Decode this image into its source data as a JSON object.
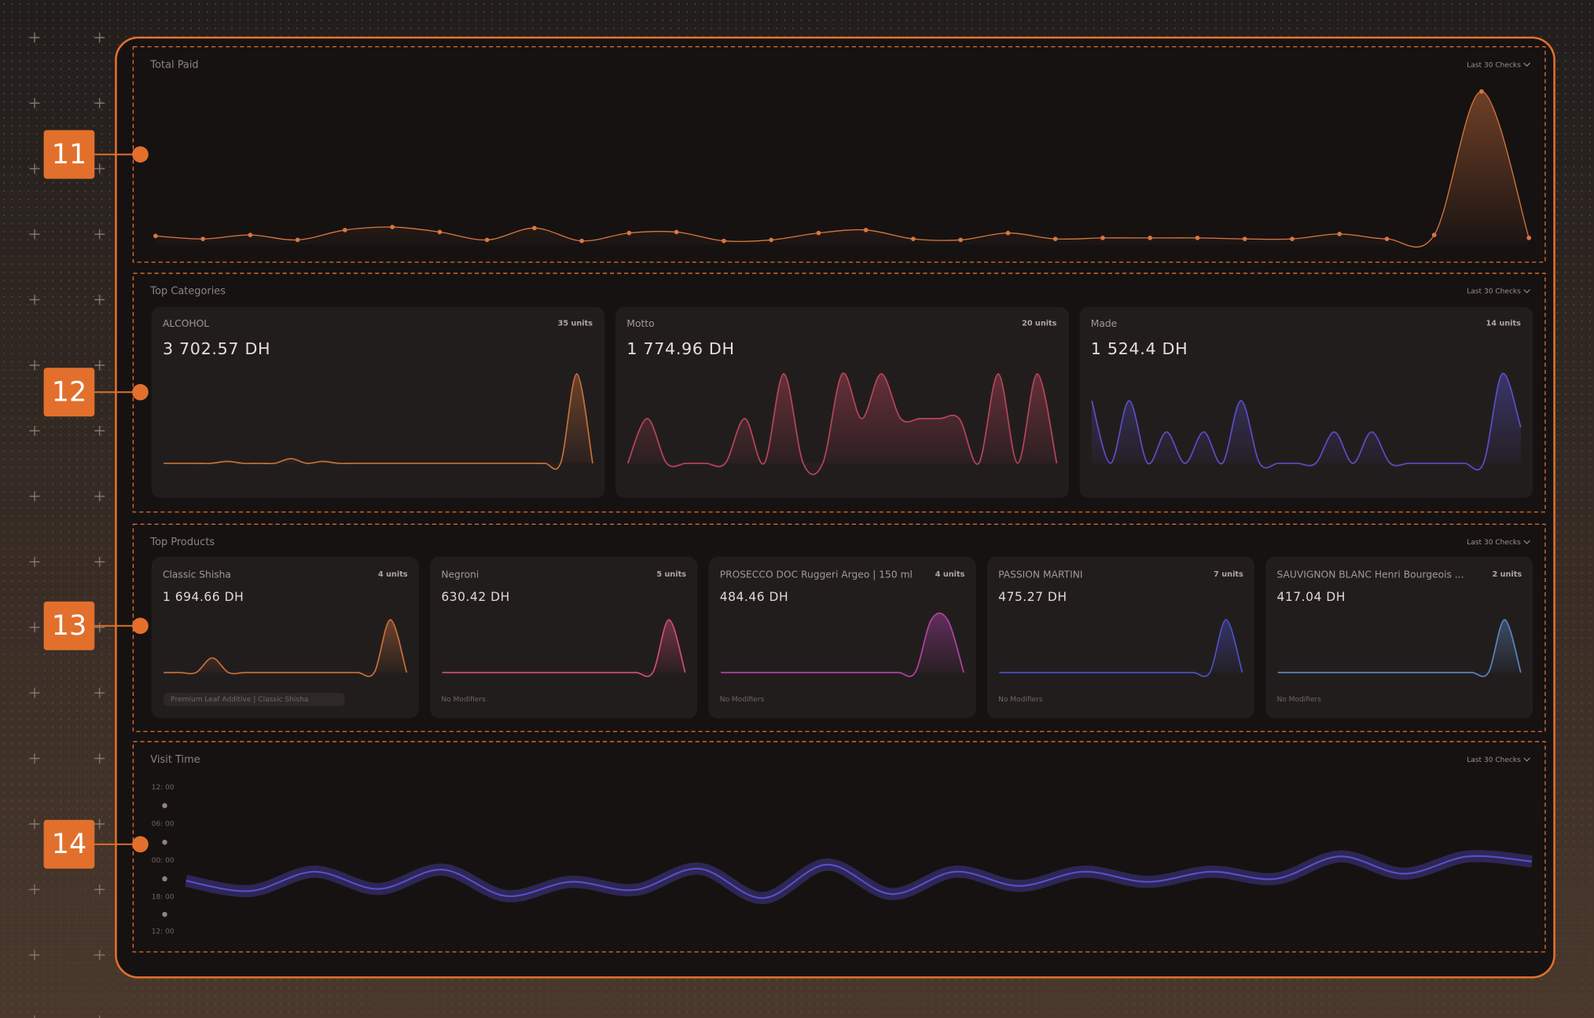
{
  "callouts": [
    "11",
    "12",
    "13",
    "14"
  ],
  "total_paid": {
    "title": "Total Paid",
    "filter": "Last 30 Checks",
    "color": "#d9773f",
    "values": [
      9,
      6,
      10,
      5,
      15,
      18,
      13,
      5,
      17,
      4,
      12,
      13,
      4,
      5,
      12,
      15,
      6,
      5,
      12,
      6,
      7,
      7,
      7,
      6,
      6,
      11,
      6,
      10,
      155,
      7
    ]
  },
  "top_categories": {
    "title": "Top Categories",
    "filter": "Last 30 Checks",
    "cards": [
      {
        "name": "ALCOHOL",
        "units": "35 units",
        "amount": "3 702.57 DH",
        "color": "#c8703a",
        "values": [
          0,
          0,
          0,
          0,
          2,
          0,
          0,
          0,
          5,
          0,
          2,
          0,
          0,
          0,
          0,
          0,
          0,
          0,
          0,
          0,
          0,
          0,
          0,
          0,
          0,
          1,
          95,
          0
        ]
      },
      {
        "name": "Motto",
        "units": "20 units",
        "amount": "1 774.96 DH",
        "color": "#b8465a",
        "values": [
          0,
          50,
          0,
          0,
          0,
          0,
          50,
          0,
          100,
          0,
          0,
          100,
          50,
          100,
          50,
          50,
          50,
          50,
          0,
          100,
          0,
          100,
          0
        ]
      },
      {
        "name": "Made",
        "units": "14 units",
        "amount": "1 524.4 DH",
        "color": "#5a50c8",
        "values": [
          70,
          0,
          70,
          0,
          35,
          0,
          35,
          0,
          70,
          0,
          0,
          0,
          0,
          35,
          0,
          35,
          0,
          0,
          0,
          0,
          0,
          0,
          100,
          40
        ]
      }
    ]
  },
  "top_products": {
    "title": "Top Products",
    "filter": "Last 30 Checks",
    "cards": [
      {
        "name": "Classic Shisha",
        "units": "4 units",
        "amount": "1 694.66 DH",
        "note": "Premium Leaf Additive | Classic Shisha",
        "color": "#c8703a",
        "values": [
          0,
          0,
          0,
          25,
          0,
          0,
          0,
          0,
          0,
          0,
          0,
          0,
          0,
          0,
          90,
          0
        ]
      },
      {
        "name": "Negroni",
        "units": "5 units",
        "amount": "630.42 DH",
        "note": "No Modifiers",
        "color": "#d05070",
        "values": [
          0,
          0,
          0,
          0,
          0,
          0,
          0,
          0,
          0,
          0,
          0,
          0,
          0,
          0,
          70,
          0
        ]
      },
      {
        "name": "PROSECCO DOC Ruggeri Argeo | 150 ml",
        "units": "4 units",
        "amount": "484.46 DH",
        "note": "No Modifiers",
        "color": "#b044a8",
        "values": [
          0,
          0,
          0,
          0,
          0,
          0,
          0,
          0,
          0,
          0,
          0,
          0,
          0,
          100,
          100,
          0
        ]
      },
      {
        "name": "PASSION MARTINI",
        "units": "7 units",
        "amount": "475.27 DH",
        "note": "No Modifiers",
        "color": "#4a52c8",
        "values": [
          0,
          0,
          0,
          0,
          0,
          0,
          0,
          0,
          0,
          0,
          0,
          0,
          0,
          0,
          65,
          0
        ]
      },
      {
        "name": "SAUVIGNON BLANC Henri Bourgeois ...",
        "units": "2 units",
        "amount": "417.04 DH",
        "note": "No Modifiers",
        "color": "#5a86c0",
        "values": [
          0,
          0,
          0,
          0,
          0,
          0,
          0,
          0,
          0,
          0,
          0,
          0,
          0,
          0,
          90,
          0
        ]
      }
    ]
  },
  "visit_time": {
    "title": "Visit Time",
    "filter": "Last 30 Checks",
    "color": "#5a4fd0",
    "axis_labels": [
      "12: 00",
      "06: 00",
      "00: 00",
      "18: 00",
      "12: 00"
    ],
    "values": [
      33,
      23,
      42,
      25,
      44,
      18,
      32,
      24,
      45,
      16,
      49,
      20,
      42,
      28,
      42,
      32,
      42,
      35,
      57,
      40,
      57,
      52
    ]
  }
}
